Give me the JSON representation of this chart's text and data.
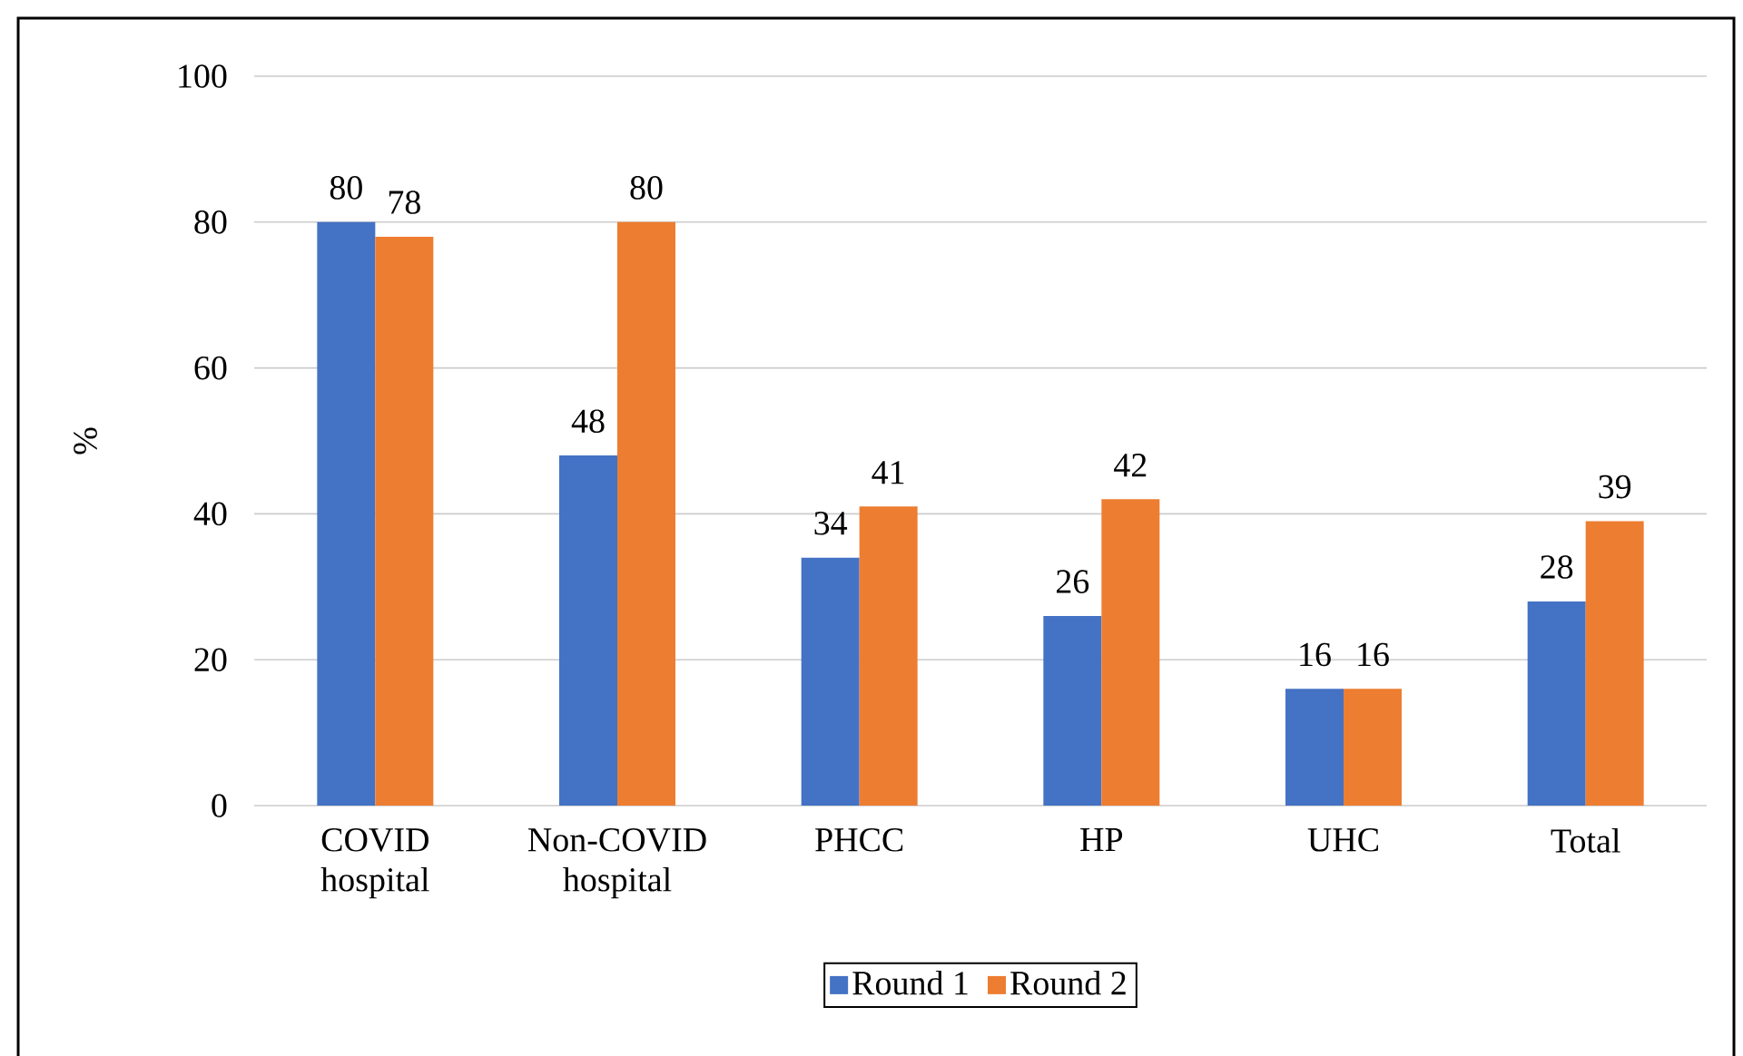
{
  "chart_data": {
    "type": "bar",
    "ylabel": "%",
    "categories": [
      "COVID hospital",
      "Non-COVID hospital",
      "PHCC",
      "HP",
      "UHC",
      "Total"
    ],
    "series": [
      {
        "name": "Round 1",
        "color": "#4472c4",
        "values": [
          80,
          48,
          34,
          26,
          16,
          28
        ]
      },
      {
        "name": "Round 2",
        "color": "#ed7d31",
        "values": [
          78,
          80,
          41,
          42,
          16,
          39
        ]
      }
    ],
    "ylim": [
      0,
      100
    ],
    "yticks": [
      0,
      20,
      40,
      60,
      80,
      100
    ],
    "grid": "y",
    "legend": "bottom",
    "data_labels": true
  }
}
